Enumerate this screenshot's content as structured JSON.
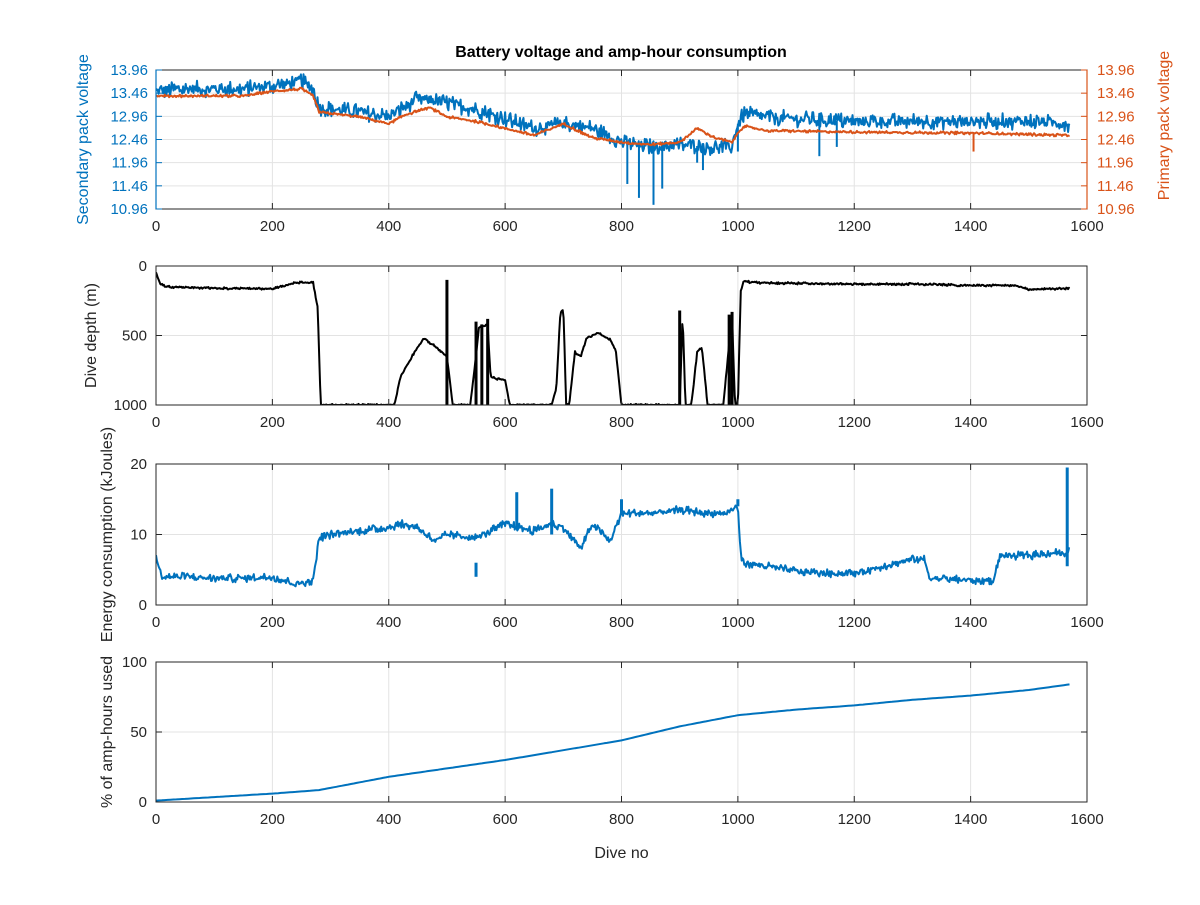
{
  "figure": {
    "title": "Battery voltage and amp-hour consumption"
  },
  "colors": {
    "blue": "#0072BD",
    "orange": "#D95319",
    "black": "#000000",
    "grid": "#e3e3e3",
    "axis": "#262626"
  },
  "chart_data": [
    {
      "type": "line",
      "title": "Battery voltage and amp-hour consumption",
      "xlim": [
        0,
        1600
      ],
      "xticks": [
        0,
        200,
        400,
        600,
        800,
        1000,
        1200,
        1400,
        1600
      ],
      "ylabel_left": "Secondary pack voltage",
      "ylabel_right": "Primary pack voltage",
      "ylim": [
        10.96,
        13.96
      ],
      "yticks": [
        10.96,
        11.46,
        11.96,
        12.46,
        12.96,
        13.46,
        13.96
      ],
      "grid": true,
      "series": [
        {
          "name": "Secondary pack voltage",
          "color": "#0072BD",
          "axis": "left",
          "noise": 0.18,
          "x": [
            0,
            50,
            100,
            150,
            200,
            250,
            270,
            280,
            350,
            400,
            450,
            500,
            550,
            600,
            650,
            700,
            750,
            800,
            850,
            900,
            950,
            990,
            1000,
            1010,
            1100,
            1200,
            1300,
            1400,
            1500,
            1570
          ],
          "y": [
            13.5,
            13.55,
            13.55,
            13.55,
            13.62,
            13.72,
            13.55,
            13.15,
            13.05,
            12.95,
            13.35,
            13.25,
            13.1,
            12.9,
            12.7,
            12.8,
            12.7,
            12.4,
            12.3,
            12.35,
            12.3,
            12.3,
            12.8,
            13.0,
            12.9,
            12.85,
            12.85,
            12.85,
            12.85,
            12.8
          ],
          "dips": [
            [
              810,
              11.5
            ],
            [
              830,
              11.2
            ],
            [
              855,
              11.05
            ],
            [
              870,
              11.4
            ],
            [
              930,
              11.96
            ],
            [
              940,
              11.8
            ],
            [
              1000,
              12.2
            ],
            [
              1140,
              12.1
            ],
            [
              1170,
              12.3
            ]
          ]
        },
        {
          "name": "Primary pack voltage",
          "color": "#D95319",
          "axis": "right",
          "noise": 0.03,
          "x": [
            0,
            50,
            100,
            150,
            200,
            250,
            270,
            280,
            350,
            400,
            430,
            470,
            500,
            550,
            600,
            650,
            700,
            750,
            800,
            850,
            900,
            930,
            960,
            990,
            1000,
            1010,
            1050,
            1200,
            1400,
            1570
          ],
          "y": [
            13.4,
            13.4,
            13.4,
            13.4,
            13.5,
            13.55,
            13.4,
            13.05,
            12.95,
            12.8,
            13.0,
            13.15,
            12.95,
            12.85,
            12.7,
            12.55,
            12.8,
            12.5,
            12.4,
            12.35,
            12.4,
            12.7,
            12.5,
            12.4,
            12.6,
            12.75,
            12.65,
            12.62,
            12.6,
            12.55
          ],
          "dips": [
            [
              1405,
              12.2
            ]
          ]
        }
      ]
    },
    {
      "type": "line",
      "xlim": [
        0,
        1600
      ],
      "xticks": [
        0,
        200,
        400,
        600,
        800,
        1000,
        1200,
        1400,
        1600
      ],
      "ylabel": "Dive depth (m)",
      "ylim": [
        0,
        1000
      ],
      "y_reversed": true,
      "yticks": [
        0,
        500,
        1000
      ],
      "grid": true,
      "series": [
        {
          "color": "#000000",
          "noise": 8,
          "x": [
            0,
            8,
            20,
            100,
            200,
            240,
            270,
            278,
            283,
            300,
            400,
            410,
            420,
            440,
            460,
            480,
            500,
            510,
            512,
            540,
            550,
            555,
            570,
            575,
            585,
            600,
            608,
            610,
            680,
            688,
            695,
            700,
            705,
            710,
            720,
            730,
            740,
            760,
            780,
            790,
            800,
            805,
            810,
            880,
            900,
            905,
            910,
            920,
            930,
            938,
            948,
            952,
            960,
            975,
            985,
            990,
            995,
            1000,
            1005,
            1010,
            1030,
            1100,
            1200,
            1300,
            1400,
            1480,
            1500,
            1570
          ],
          "y": [
            50,
            130,
            150,
            160,
            165,
            120,
            120,
            300,
            1000,
            1000,
            1000,
            1000,
            800,
            650,
            520,
            580,
            650,
            1000,
            1000,
            1000,
            650,
            440,
            420,
            800,
            810,
            820,
            1000,
            1000,
            1000,
            880,
            330,
            310,
            1000,
            1000,
            620,
            650,
            520,
            480,
            530,
            600,
            1000,
            1000,
            1000,
            1000,
            1000,
            360,
            1000,
            1000,
            620,
            580,
            1000,
            1000,
            1000,
            1000,
            560,
            350,
            1000,
            1000,
            180,
            110,
            120,
            125,
            130,
            130,
            140,
            140,
            170,
            160
          ],
          "spikes": [
            [
              500,
              1000,
              100
            ],
            [
              550,
              1000,
              400
            ],
            [
              560,
              1000,
              420
            ],
            [
              570,
              1000,
              380
            ],
            [
              900,
              1000,
              320
            ],
            [
              985,
              1000,
              350
            ],
            [
              990,
              1000,
              330
            ]
          ]
        }
      ]
    },
    {
      "type": "line",
      "xlim": [
        0,
        1600
      ],
      "xticks": [
        0,
        200,
        400,
        600,
        800,
        1000,
        1200,
        1400,
        1600
      ],
      "ylabel": "Energy consumption (kJoules)",
      "ylim": [
        0,
        20
      ],
      "yticks": [
        0,
        10,
        20
      ],
      "grid": true,
      "series": [
        {
          "color": "#0072BD",
          "noise": 0.6,
          "x": [
            0,
            5,
            10,
            50,
            100,
            150,
            200,
            240,
            270,
            280,
            300,
            350,
            400,
            420,
            450,
            480,
            500,
            550,
            600,
            650,
            680,
            700,
            730,
            750,
            780,
            800,
            850,
            900,
            950,
            980,
            1000,
            1005,
            1010,
            1050,
            1100,
            1150,
            1200,
            1250,
            1300,
            1320,
            1330,
            1400,
            1420,
            1440,
            1450,
            1500,
            1550,
            1565,
            1570
          ],
          "y": [
            7.5,
            5.0,
            4.0,
            4.0,
            3.8,
            3.8,
            4.0,
            3.0,
            3.5,
            9.5,
            10.0,
            10.5,
            11.0,
            11.5,
            11.0,
            9.0,
            10.0,
            9.5,
            11.5,
            10.5,
            11.5,
            11.0,
            8.0,
            11.5,
            9.0,
            13.0,
            13.0,
            13.5,
            13.0,
            13.0,
            14.0,
            7.0,
            6.0,
            5.5,
            4.8,
            4.5,
            4.5,
            5.5,
            6.5,
            6.5,
            3.8,
            3.5,
            3.5,
            3.5,
            7.0,
            7.0,
            7.5,
            7.0,
            8.0
          ],
          "spikes": [
            [
              550,
              6,
              4
            ],
            [
              620,
              16,
              11
            ],
            [
              680,
              16.5,
              10
            ],
            [
              800,
              15,
              13
            ],
            [
              1000,
              15,
              14
            ],
            [
              1566,
              5.5,
              19.5
            ]
          ]
        }
      ]
    },
    {
      "type": "line",
      "xlim": [
        0,
        1600
      ],
      "xticks": [
        0,
        200,
        400,
        600,
        800,
        1000,
        1200,
        1400,
        1600
      ],
      "xlabel": "Dive no",
      "ylabel": "% of amp-hours used",
      "ylim": [
        0,
        100
      ],
      "yticks": [
        0,
        50,
        100
      ],
      "grid": true,
      "series": [
        {
          "color": "#0072BD",
          "noise": 0,
          "x": [
            0,
            100,
            200,
            280,
            400,
            500,
            600,
            700,
            800,
            900,
            1000,
            1050,
            1100,
            1200,
            1300,
            1400,
            1500,
            1570
          ],
          "y": [
            1,
            3.5,
            6,
            8.5,
            18,
            24,
            30,
            37,
            44,
            54,
            62,
            64,
            66,
            69,
            73,
            76,
            80,
            84
          ]
        }
      ]
    }
  ]
}
